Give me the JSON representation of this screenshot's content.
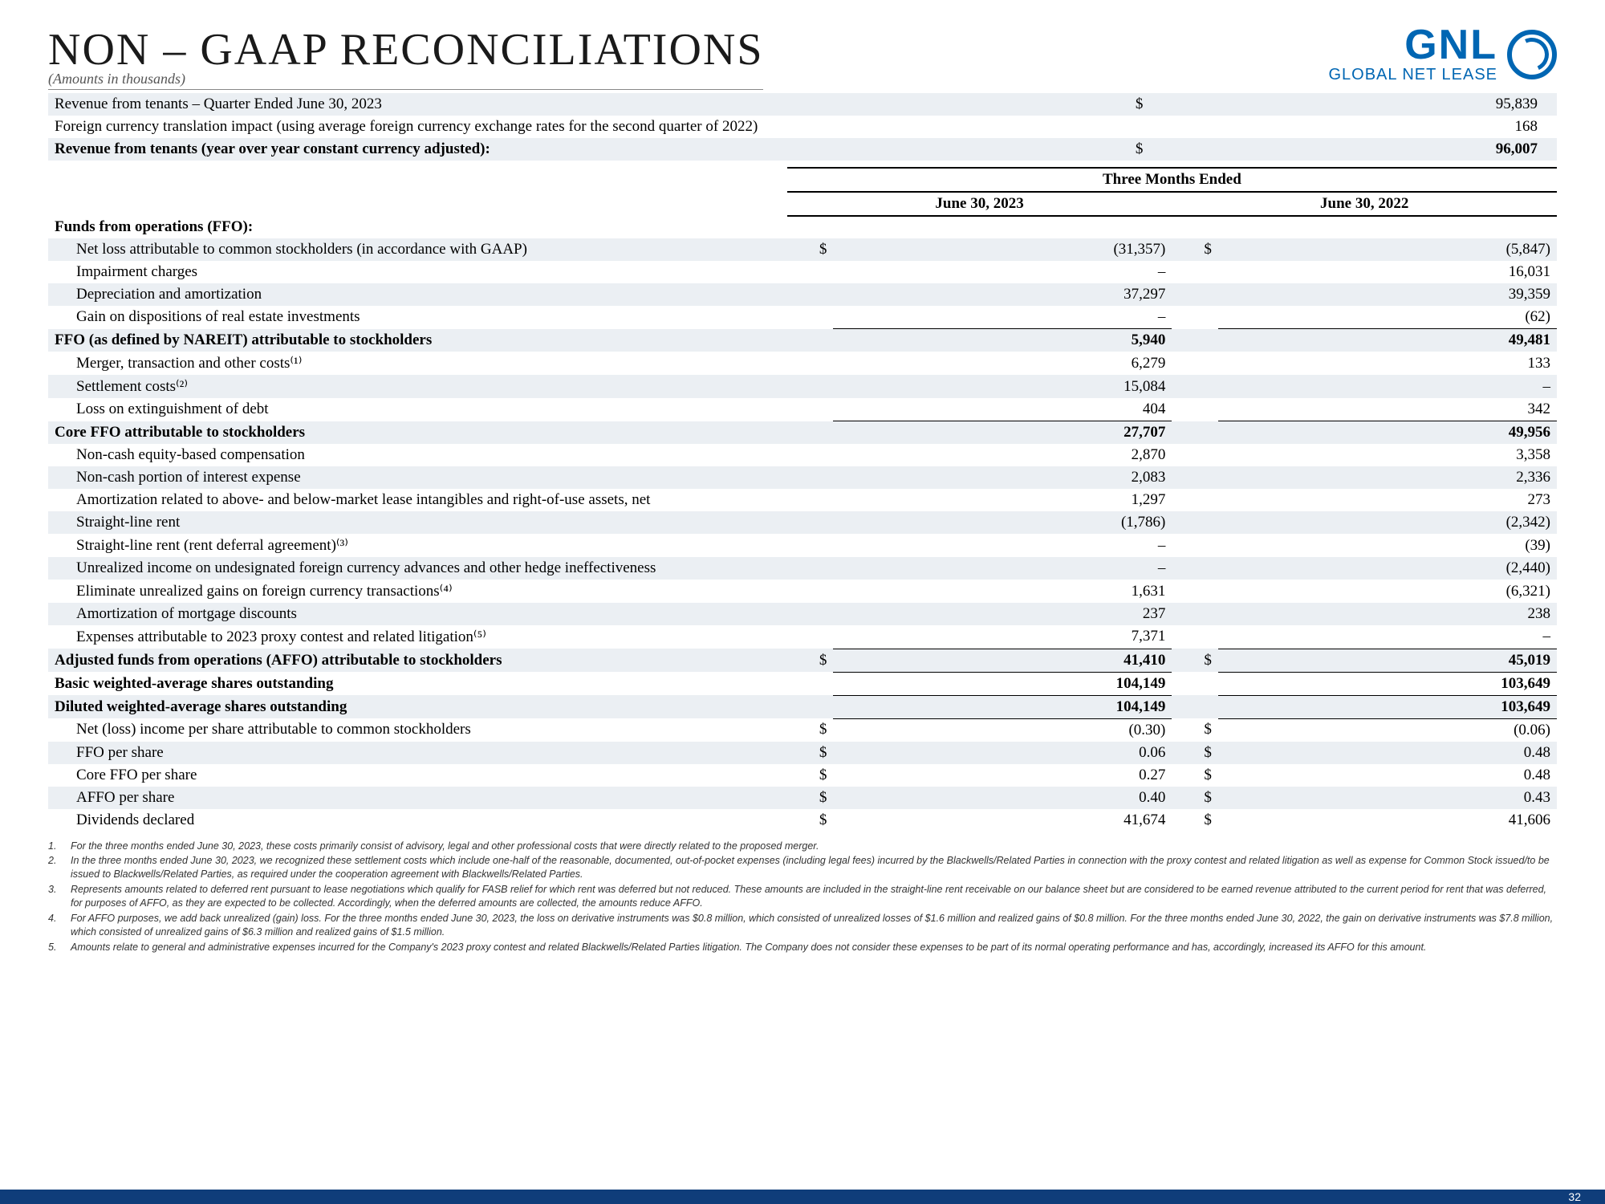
{
  "header": {
    "title": "NON – GAAP RECONCILIATIONS",
    "subtitle": "(Amounts in thousands)",
    "logo_gnl": "GNL",
    "logo_sub": "GLOBAL NET LEASE"
  },
  "top_table": {
    "rows": [
      {
        "label": "Revenue from tenants – Quarter Ended June 30, 2023",
        "sym": "$",
        "val": "95,839",
        "shade": true
      },
      {
        "label": "Foreign currency translation impact (using average foreign currency exchange rates for the second quarter of 2022)",
        "sym": "",
        "val": "168",
        "shade": false
      },
      {
        "label": "Revenue from tenants (year over year constant currency adjusted):",
        "sym": "$",
        "val": "96,007",
        "shade": true,
        "bold": true
      }
    ]
  },
  "main_table": {
    "period_label": "Three Months Ended",
    "col1_date": "June 30, 2023",
    "col2_date": "June 30, 2022",
    "rows": [
      {
        "label": "Funds from operations (FFO):",
        "bold": true,
        "shade": false,
        "v1": "",
        "v2": "",
        "s1": "",
        "s2": ""
      },
      {
        "label": "Net loss attributable to common stockholders (in accordance with GAAP)",
        "indent": true,
        "shade": true,
        "s1": "$",
        "v1": "(31,357)",
        "s2": "$",
        "v2": "(5,847)"
      },
      {
        "label": "Impairment charges",
        "indent": true,
        "shade": false,
        "v1": "–",
        "v2": "16,031",
        "s1": "",
        "s2": ""
      },
      {
        "label": "Depreciation and amortization",
        "indent": true,
        "shade": true,
        "v1": "37,297",
        "v2": "39,359",
        "s1": "",
        "s2": ""
      },
      {
        "label": "Gain on dispositions of real estate investments",
        "indent": true,
        "shade": false,
        "v1": "–",
        "v2": "(62)",
        "s1": "",
        "s2": "",
        "underline": true
      },
      {
        "label": "FFO (as defined by NAREIT) attributable to stockholders",
        "bold": true,
        "shade": true,
        "v1": "5,940",
        "v2": "49,481",
        "s1": "",
        "s2": ""
      },
      {
        "label": "Merger, transaction and other costs⁽¹⁾",
        "indent": true,
        "shade": false,
        "v1": "6,279",
        "v2": "133",
        "s1": "",
        "s2": ""
      },
      {
        "label": "Settlement costs⁽²⁾",
        "indent": true,
        "shade": true,
        "v1": "15,084",
        "v2": "–",
        "s1": "",
        "s2": ""
      },
      {
        "label": "Loss on extinguishment of debt",
        "indent": true,
        "shade": false,
        "v1": "404",
        "v2": "342",
        "s1": "",
        "s2": "",
        "underline": true
      },
      {
        "label": "Core FFO attributable to stockholders",
        "bold": true,
        "shade": true,
        "v1": "27,707",
        "v2": "49,956",
        "s1": "",
        "s2": ""
      },
      {
        "label": "Non-cash equity-based compensation",
        "indent": true,
        "shade": false,
        "v1": "2,870",
        "v2": "3,358",
        "s1": "",
        "s2": ""
      },
      {
        "label": "Non-cash portion of interest expense",
        "indent": true,
        "shade": true,
        "v1": "2,083",
        "v2": "2,336",
        "s1": "",
        "s2": ""
      },
      {
        "label": "Amortization related to above- and below-market lease intangibles and right-of-use assets, net",
        "indent": true,
        "shade": false,
        "v1": "1,297",
        "v2": "273",
        "s1": "",
        "s2": ""
      },
      {
        "label": "Straight-line rent",
        "indent": true,
        "shade": true,
        "v1": "(1,786)",
        "v2": "(2,342)",
        "s1": "",
        "s2": ""
      },
      {
        "label": "Straight-line rent (rent deferral agreement)⁽³⁾",
        "indent": true,
        "shade": false,
        "v1": "–",
        "v2": "(39)",
        "s1": "",
        "s2": ""
      },
      {
        "label": "Unrealized income on undesignated foreign currency advances and other hedge ineffectiveness",
        "indent": true,
        "shade": true,
        "v1": "–",
        "v2": "(2,440)",
        "s1": "",
        "s2": ""
      },
      {
        "label": "Eliminate unrealized gains on foreign currency transactions⁽⁴⁾",
        "indent": true,
        "shade": false,
        "v1": "1,631",
        "v2": "(6,321)",
        "s1": "",
        "s2": ""
      },
      {
        "label": "Amortization of mortgage discounts",
        "indent": true,
        "shade": true,
        "v1": "237",
        "v2": "238",
        "s1": "",
        "s2": ""
      },
      {
        "label": "Expenses attributable to 2023 proxy contest and related litigation⁽⁵⁾",
        "indent": true,
        "shade": false,
        "v1": "7,371",
        "v2": "–",
        "s1": "",
        "s2": "",
        "underline": true
      },
      {
        "label": "Adjusted funds from operations (AFFO) attributable to stockholders",
        "bold": true,
        "shade": true,
        "s1": "$",
        "v1": "41,410",
        "s2": "$",
        "v2": "45,019"
      },
      {
        "label": "Basic weighted-average shares outstanding",
        "bold": true,
        "shade": false,
        "v1": "104,149",
        "v2": "103,649",
        "s1": "",
        "s2": "",
        "tbl": true
      },
      {
        "label": "Diluted weighted-average shares outstanding",
        "bold": true,
        "shade": true,
        "v1": "104,149",
        "v2": "103,649",
        "s1": "",
        "s2": "",
        "tbl": true
      },
      {
        "label": "Net (loss) income per share attributable to common stockholders",
        "indent": true,
        "shade": false,
        "s1": "$",
        "v1": "(0.30)",
        "s2": "$",
        "v2": "(0.06)"
      },
      {
        "label": "FFO per share",
        "indent": true,
        "shade": true,
        "s1": "$",
        "v1": "0.06",
        "s2": "$",
        "v2": "0.48"
      },
      {
        "label": "Core FFO per share",
        "indent": true,
        "shade": false,
        "s1": "$",
        "v1": "0.27",
        "s2": "$",
        "v2": "0.48"
      },
      {
        "label": "AFFO per share",
        "indent": true,
        "shade": true,
        "s1": "$",
        "v1": "0.40",
        "s2": "$",
        "v2": "0.43"
      },
      {
        "label": "Dividends declared",
        "indent": true,
        "shade": false,
        "s1": "$",
        "v1": "41,674",
        "s2": "$",
        "v2": "41,606"
      }
    ]
  },
  "footnotes": [
    {
      "num": "1.",
      "text": "For the three months ended June 30, 2023, these costs primarily consist of advisory, legal and other professional costs that were directly related to the proposed merger."
    },
    {
      "num": "2.",
      "text": "In the three months ended June 30, 2023, we recognized these settlement costs which include one-half of the reasonable, documented, out-of-pocket expenses (including legal fees) incurred by the Blackwells/Related Parties in connection with the proxy contest and related litigation as well as expense for Common Stock issued/to be issued to Blackwells/Related Parties, as required under the cooperation agreement with Blackwells/Related Parties."
    },
    {
      "num": "3.",
      "text": "Represents amounts related to deferred rent pursuant to lease negotiations which qualify for FASB relief for which rent was deferred but not reduced. These amounts are included in the straight-line rent receivable on our balance sheet but are considered to be earned revenue attributed to the current period for rent that was deferred, for purposes of AFFO, as they are expected to be collected. Accordingly, when the deferred amounts are collected, the amounts reduce AFFO."
    },
    {
      "num": "4.",
      "text": "For AFFO purposes, we add back unrealized (gain) loss. For the three months ended June 30, 2023, the loss on derivative instruments was $0.8 million, which consisted of unrealized losses of $1.6 million and realized gains of $0.8 million. For the three months ended June 30, 2022, the gain on derivative instruments was $7.8 million, which consisted of unrealized gains of $6.3 million and realized gains of $1.5 million."
    },
    {
      "num": "5.",
      "text": "Amounts relate to general and administrative expenses incurred for the Company's 2023 proxy contest and related Blackwells/Related Parties litigation. The Company does not consider these expenses to be part of its normal operating performance and has, accordingly, increased its AFFO for this amount."
    }
  ],
  "page_number": "32"
}
